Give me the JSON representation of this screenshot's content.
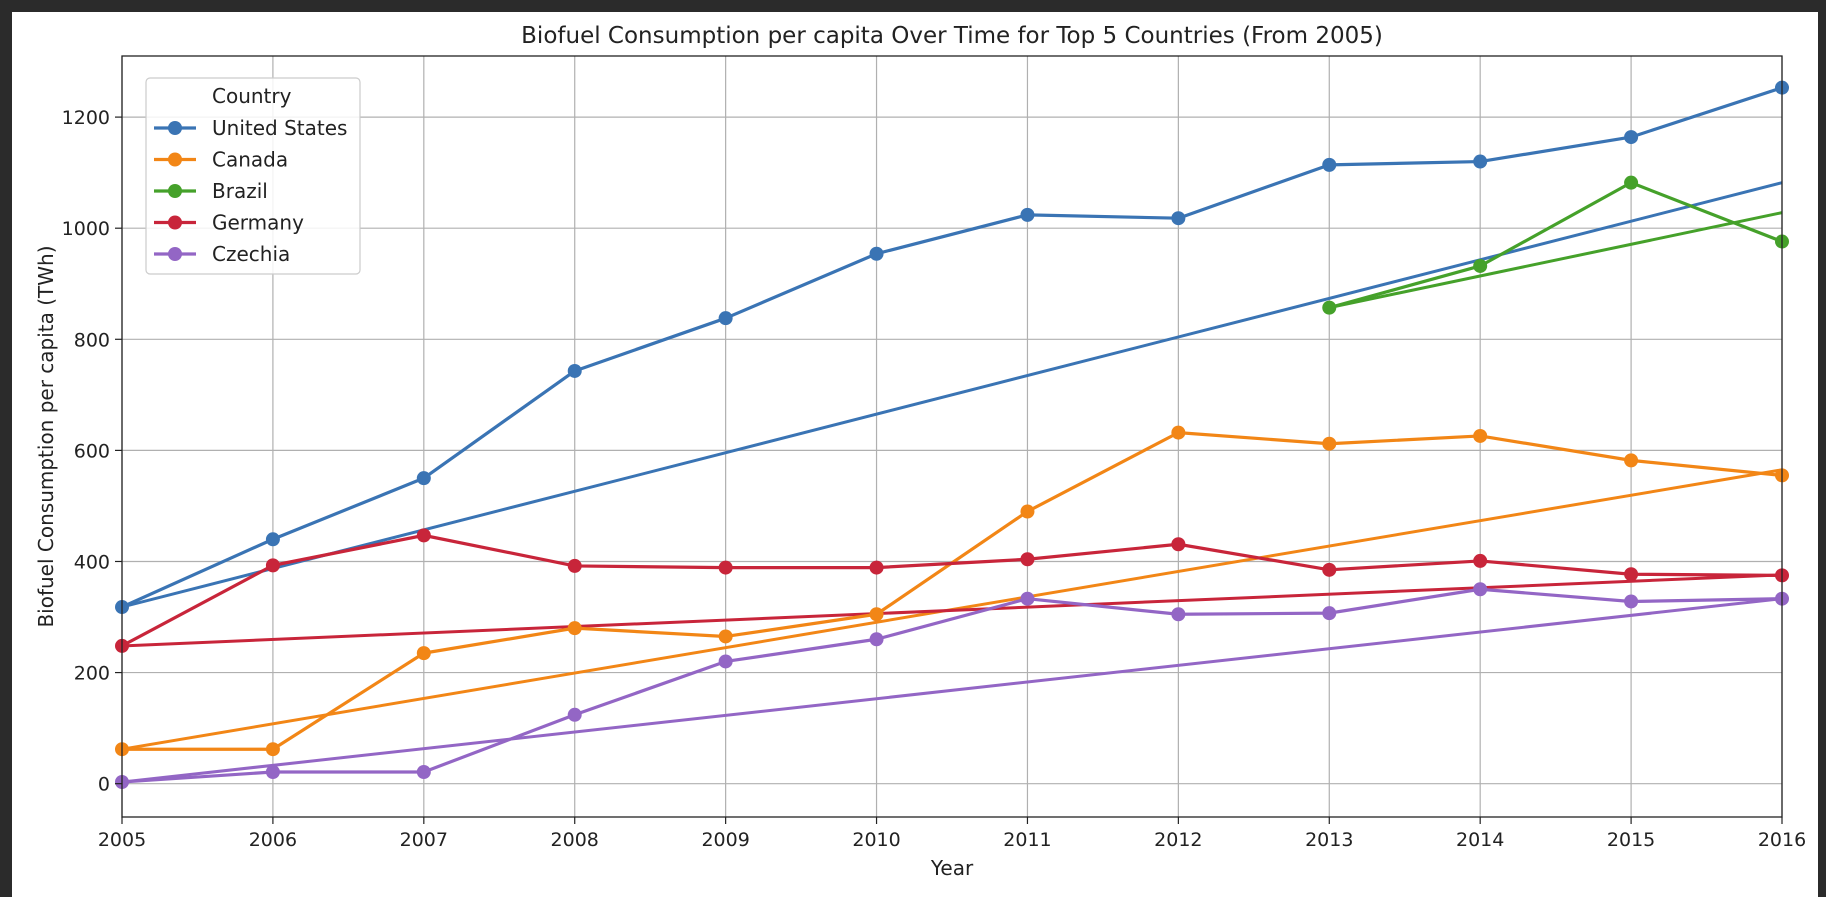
{
  "chart_data": {
    "type": "line",
    "title": "Biofuel Consumption per capita Over Time for Top 5 Countries (From 2005)",
    "xlabel": "Year",
    "ylabel": "Biofuel Consumption per capita (TWh)",
    "xlim": [
      2005,
      2016
    ],
    "ylim": [
      -60,
      1310
    ],
    "x_ticks": [
      2005,
      2006,
      2007,
      2008,
      2009,
      2010,
      2011,
      2012,
      2013,
      2014,
      2015,
      2016
    ],
    "y_ticks": [
      0,
      200,
      400,
      600,
      800,
      1000,
      1200
    ],
    "grid": true,
    "legend": {
      "title": "Country",
      "position": "top-left"
    },
    "series": [
      {
        "name": "United States",
        "color": "#3a74b4",
        "x": [
          2005,
          2006,
          2007,
          2008,
          2009,
          2010,
          2011,
          2012,
          2013,
          2014,
          2015,
          2016
        ],
        "values": [
          318,
          440,
          550,
          743,
          838,
          954,
          1024,
          1018,
          1114,
          1120,
          1164,
          1253
        ],
        "trend": [
          318,
          1082
        ]
      },
      {
        "name": "Canada",
        "color": "#f28616",
        "x": [
          2005,
          2006,
          2007,
          2008,
          2009,
          2010,
          2011,
          2012,
          2013,
          2014,
          2015,
          2016
        ],
        "values": [
          62,
          62,
          235,
          280,
          265,
          305,
          490,
          632,
          612,
          626,
          582,
          555
        ],
        "trend": [
          62,
          565
        ]
      },
      {
        "name": "Brazil",
        "color": "#45a12a",
        "x": [
          2013,
          2014,
          2015,
          2016
        ],
        "values": [
          857,
          932,
          1082,
          976
        ],
        "trend_x": [
          2013,
          2016
        ],
        "trend": [
          857,
          1028
        ]
      },
      {
        "name": "Germany",
        "color": "#c8253a",
        "x": [
          2005,
          2006,
          2007,
          2008,
          2009,
          2010,
          2011,
          2012,
          2013,
          2014,
          2015,
          2016
        ],
        "values": [
          248,
          393,
          447,
          392,
          389,
          389,
          404,
          431,
          385,
          401,
          377,
          375
        ],
        "trend": [
          248,
          376
        ]
      },
      {
        "name": "Czechia",
        "color": "#9366c5",
        "x": [
          2005,
          2006,
          2007,
          2008,
          2009,
          2010,
          2011,
          2012,
          2013,
          2014,
          2015,
          2016
        ],
        "values": [
          3,
          21,
          21,
          124,
          220,
          260,
          333,
          305,
          307,
          350,
          328,
          333
        ],
        "trend": [
          3,
          333
        ]
      }
    ]
  }
}
